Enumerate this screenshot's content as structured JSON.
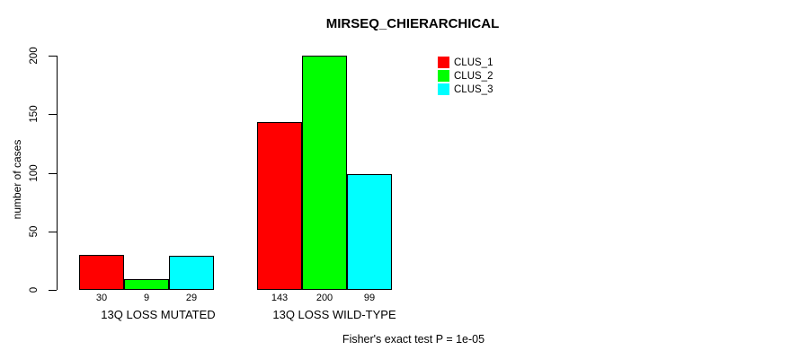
{
  "chart_data": {
    "type": "bar",
    "title": "MIRSEQ_CHIERARCHICAL",
    "ylabel": "number of cases",
    "xlabel": "",
    "categories": [
      "13Q LOSS MUTATED",
      "13Q LOSS WILD-TYPE"
    ],
    "series": [
      {
        "name": "CLUS_1",
        "color": "#FF0000",
        "values": [
          30,
          143
        ]
      },
      {
        "name": "CLUS_2",
        "color": "#00FF00",
        "values": [
          9,
          200
        ]
      },
      {
        "name": "CLUS_3",
        "color": "#00FFFF",
        "values": [
          29,
          99
        ]
      }
    ],
    "bar_value_labels": [
      [
        30,
        9,
        29
      ],
      [
        143,
        200,
        99
      ]
    ],
    "yticks": [
      0,
      50,
      100,
      150,
      200
    ],
    "ylim": [
      0,
      200
    ],
    "grid": false,
    "show_bar_values": true,
    "legend_position": "top-right-inside",
    "legend_items": [
      {
        "label": "CLUS_1",
        "color": "#FF0000"
      },
      {
        "label": "CLUS_2",
        "color": "#00FF00"
      },
      {
        "label": "CLUS_3",
        "color": "#00FFFF"
      }
    ],
    "annotation": "Fisher's exact test P = 1e-05",
    "axis_color": "#000000",
    "bar_border_color": "#000000",
    "background_color": "#FFFFFF"
  }
}
